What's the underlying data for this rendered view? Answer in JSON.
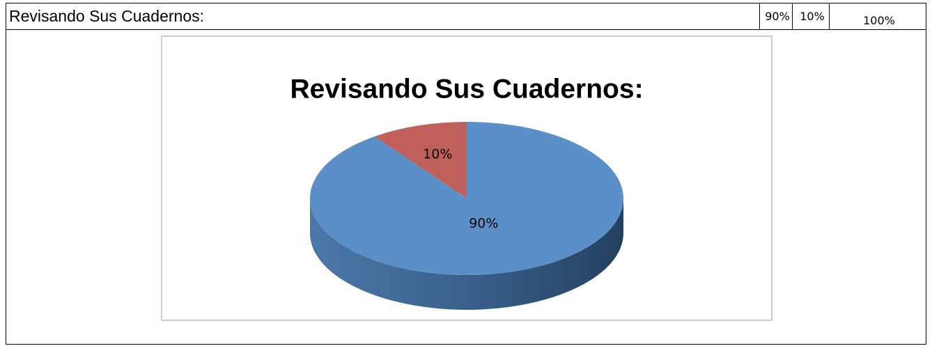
{
  "table": {
    "cells": [
      "Revisando Sus Cuadernos:",
      "90%",
      "10%",
      "100%"
    ]
  },
  "chart_data": {
    "type": "pie",
    "title": "Revisando Sus Cuadernos:",
    "values": [
      90,
      10
    ],
    "value_labels": [
      "90%",
      "10%"
    ],
    "colors": [
      "#5b8fc7",
      "#c0605b"
    ]
  }
}
